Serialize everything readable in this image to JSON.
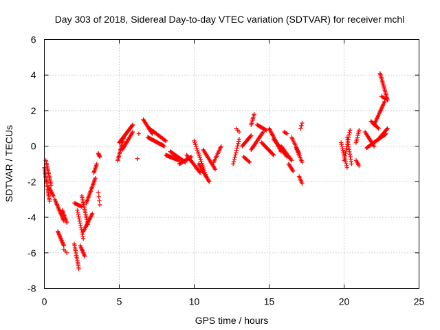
{
  "chart_data": {
    "type": "scatter",
    "title": "Day 303 of 2018, Sidereal Day-to-day VTEC variation (SDTVAR) for receiver mchl",
    "xlabel": "GPS time / hours",
    "ylabel": "SDTVAR / TECUs",
    "xlim": [
      0,
      25
    ],
    "ylim": [
      -8,
      6
    ],
    "xticks": [
      "0",
      "5",
      "10",
      "15",
      "20",
      "25"
    ],
    "yticks": [
      "-8",
      "-6",
      "-4",
      "-2",
      "0",
      "2",
      "4",
      "6"
    ],
    "grid": true,
    "marker": "plus",
    "color": "#ff0000",
    "segments": [
      {
        "x0": 0.0,
        "x1": 0.35,
        "y0": -1.2,
        "y1": -3.1,
        "n": 24
      },
      {
        "x0": 0.1,
        "x1": 0.45,
        "y0": -0.8,
        "y1": -2.2,
        "n": 18
      },
      {
        "x0": 0.3,
        "x1": 0.6,
        "y0": -2.3,
        "y1": -2.8,
        "n": 10
      },
      {
        "x0": 0.7,
        "x1": 1.3,
        "y0": -3.0,
        "y1": -4.2,
        "n": 18
      },
      {
        "x0": 0.9,
        "x1": 1.3,
        "y0": -4.8,
        "y1": -5.6,
        "n": 14
      },
      {
        "x0": 1.2,
        "x1": 1.5,
        "y0": -3.6,
        "y1": -4.3,
        "n": 10
      },
      {
        "x0": 1.3,
        "x1": 1.5,
        "y0": -5.8,
        "y1": -6.0,
        "n": 3
      },
      {
        "x0": 2.0,
        "x1": 2.3,
        "y0": -5.5,
        "y1": -6.9,
        "n": 16
      },
      {
        "x0": 2.0,
        "x1": 2.5,
        "y0": -3.2,
        "y1": -3.4,
        "n": 10
      },
      {
        "x0": 2.2,
        "x1": 2.6,
        "y0": -3.6,
        "y1": -5.2,
        "n": 14
      },
      {
        "x0": 2.4,
        "x1": 2.7,
        "y0": -5.6,
        "y1": -6.2,
        "n": 10
      },
      {
        "x0": 2.5,
        "x1": 2.9,
        "y0": -2.8,
        "y1": -4.4,
        "n": 18
      },
      {
        "x0": 2.6,
        "x1": 3.2,
        "y0": -4.8,
        "y1": -3.8,
        "n": 16
      },
      {
        "x0": 2.8,
        "x1": 3.4,
        "y0": -3.2,
        "y1": -1.8,
        "n": 20
      },
      {
        "x0": 3.3,
        "x1": 3.5,
        "y0": -1.5,
        "y1": -1.0,
        "n": 8
      },
      {
        "x0": 3.6,
        "x1": 3.7,
        "y0": -0.4,
        "y1": -0.6,
        "n": 5
      },
      {
        "x0": 3.6,
        "x1": 3.7,
        "y0": -2.6,
        "y1": -3.3,
        "n": 4
      },
      {
        "x0": 4.9,
        "x1": 5.3,
        "y0": -0.8,
        "y1": 0.5,
        "n": 18
      },
      {
        "x0": 5.0,
        "x1": 5.9,
        "y0": 0.2,
        "y1": 1.2,
        "n": 26
      },
      {
        "x0": 5.2,
        "x1": 5.9,
        "y0": -0.2,
        "y1": 0.8,
        "n": 18
      },
      {
        "x0": 6.2,
        "x1": 6.3,
        "y0": -0.7,
        "y1": -0.7,
        "n": 1
      },
      {
        "x0": 6.3,
        "x1": 6.4,
        "y0": 0.7,
        "y1": 0.7,
        "n": 1
      },
      {
        "x0": 6.6,
        "x1": 7.2,
        "y0": 1.5,
        "y1": 0.7,
        "n": 14
      },
      {
        "x0": 6.9,
        "x1": 8.0,
        "y0": 0.5,
        "y1": 0.0,
        "n": 26
      },
      {
        "x0": 7.0,
        "x1": 8.1,
        "y0": 1.0,
        "y1": 0.3,
        "n": 22
      },
      {
        "x0": 8.1,
        "x1": 9.0,
        "y0": -0.5,
        "y1": -0.8,
        "n": 24
      },
      {
        "x0": 8.4,
        "x1": 9.4,
        "y0": -0.3,
        "y1": -0.9,
        "n": 22
      },
      {
        "x0": 9.0,
        "x1": 9.8,
        "y0": -1.0,
        "y1": -0.6,
        "n": 16
      },
      {
        "x0": 9.5,
        "x1": 10.4,
        "y0": -0.5,
        "y1": -1.5,
        "n": 20
      },
      {
        "x0": 10.0,
        "x1": 10.8,
        "y0": 0.3,
        "y1": -1.7,
        "n": 20
      },
      {
        "x0": 10.3,
        "x1": 11.0,
        "y0": -1.0,
        "y1": -2.0,
        "n": 18
      },
      {
        "x0": 10.6,
        "x1": 11.4,
        "y0": -0.2,
        "y1": -1.3,
        "n": 18
      },
      {
        "x0": 11.3,
        "x1": 11.8,
        "y0": -0.9,
        "y1": 0.0,
        "n": 12
      },
      {
        "x0": 12.6,
        "x1": 13.0,
        "y0": -1.0,
        "y1": 0.4,
        "n": 12
      },
      {
        "x0": 12.8,
        "x1": 13.0,
        "y0": 1.0,
        "y1": 0.8,
        "n": 3
      },
      {
        "x0": 13.2,
        "x1": 13.8,
        "y0": 0.0,
        "y1": 0.6,
        "n": 14
      },
      {
        "x0": 13.3,
        "x1": 13.7,
        "y0": -0.6,
        "y1": -0.9,
        "n": 8
      },
      {
        "x0": 13.8,
        "x1": 14.0,
        "y0": 1.2,
        "y1": 1.8,
        "n": 8
      },
      {
        "x0": 13.8,
        "x1": 14.6,
        "y0": -0.2,
        "y1": 0.8,
        "n": 20
      },
      {
        "x0": 14.2,
        "x1": 14.8,
        "y0": 1.2,
        "y1": 0.9,
        "n": 12
      },
      {
        "x0": 14.5,
        "x1": 15.3,
        "y0": 0.2,
        "y1": -0.5,
        "n": 18
      },
      {
        "x0": 15.0,
        "x1": 15.8,
        "y0": 1.0,
        "y1": -0.3,
        "n": 20
      },
      {
        "x0": 15.3,
        "x1": 16.2,
        "y0": 0.4,
        "y1": -0.6,
        "n": 22
      },
      {
        "x0": 15.8,
        "x1": 16.5,
        "y0": 0.0,
        "y1": -0.8,
        "n": 16
      },
      {
        "x0": 16.0,
        "x1": 16.2,
        "y0": 0.8,
        "y1": 0.7,
        "n": 4
      },
      {
        "x0": 16.3,
        "x1": 16.6,
        "y0": -1.0,
        "y1": -1.4,
        "n": 8
      },
      {
        "x0": 16.5,
        "x1": 17.0,
        "y0": 0.5,
        "y1": -0.4,
        "n": 12
      },
      {
        "x0": 16.8,
        "x1": 17.2,
        "y0": -0.1,
        "y1": -0.9,
        "n": 10
      },
      {
        "x0": 17.0,
        "x1": 17.2,
        "y0": -1.7,
        "y1": -2.1,
        "n": 6
      },
      {
        "x0": 17.1,
        "x1": 17.2,
        "y0": 1.0,
        "y1": 1.3,
        "n": 3
      },
      {
        "x0": 19.8,
        "x1": 20.2,
        "y0": 0.2,
        "y1": -1.2,
        "n": 14
      },
      {
        "x0": 20.0,
        "x1": 20.4,
        "y0": -0.8,
        "y1": 0.9,
        "n": 14
      },
      {
        "x0": 20.2,
        "x1": 20.5,
        "y0": 0.5,
        "y1": -1.0,
        "n": 12
      },
      {
        "x0": 20.8,
        "x1": 21.0,
        "y0": -0.8,
        "y1": -1.1,
        "n": 5
      },
      {
        "x0": 20.8,
        "x1": 21.0,
        "y0": 0.2,
        "y1": 0.9,
        "n": 8
      },
      {
        "x0": 21.4,
        "x1": 22.0,
        "y0": 0.8,
        "y1": 0.0,
        "n": 14
      },
      {
        "x0": 21.5,
        "x1": 22.8,
        "y0": -0.1,
        "y1": 0.7,
        "n": 26
      },
      {
        "x0": 21.8,
        "x1": 22.3,
        "y0": 1.4,
        "y1": 1.0,
        "n": 10
      },
      {
        "x0": 22.0,
        "x1": 22.7,
        "y0": 1.2,
        "y1": 2.5,
        "n": 20
      },
      {
        "x0": 22.3,
        "x1": 22.9,
        "y0": 0.4,
        "y1": 1.0,
        "n": 14
      },
      {
        "x0": 22.4,
        "x1": 22.9,
        "y0": 4.1,
        "y1": 2.6,
        "n": 20
      },
      {
        "x0": 22.5,
        "x1": 22.9,
        "y0": 2.8,
        "y1": 2.6,
        "n": 6
      }
    ]
  }
}
